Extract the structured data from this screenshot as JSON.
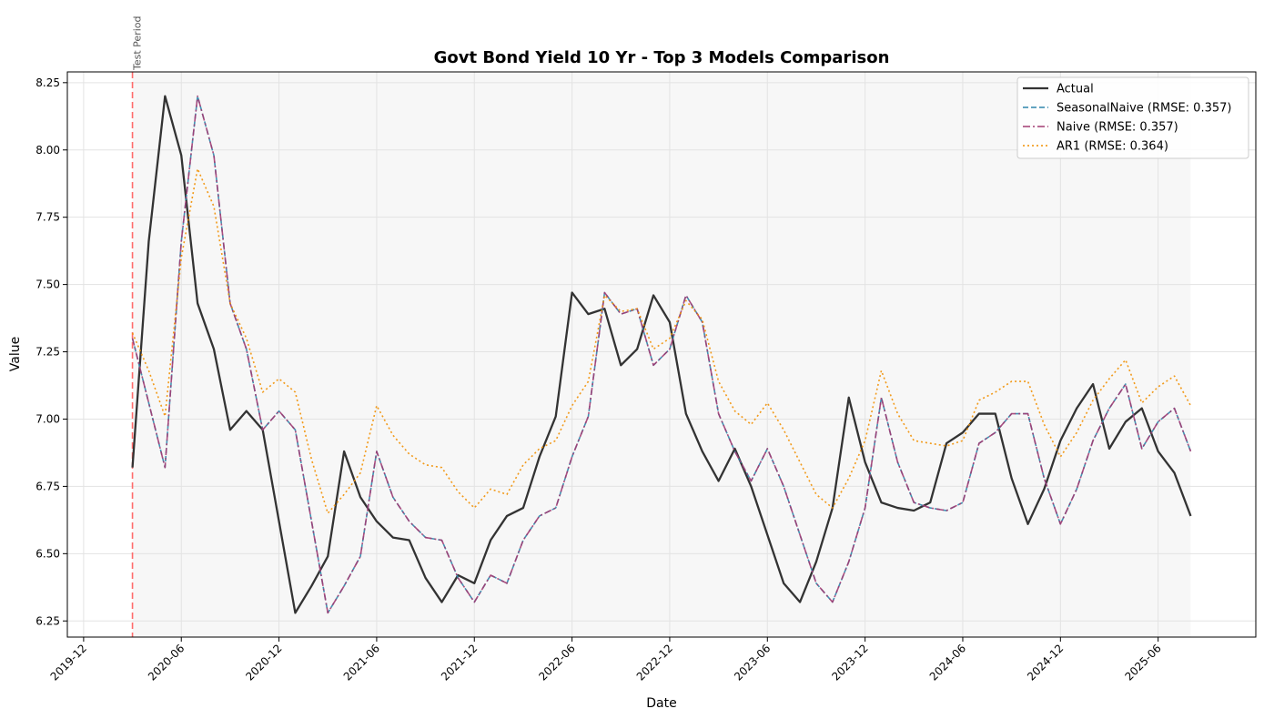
{
  "chart_data": {
    "type": "line",
    "title": "Govt Bond Yield 10 Yr - Top 3 Models Comparison",
    "xlabel": "Date",
    "ylabel": "Value",
    "ylim": [
      6.19,
      8.29
    ],
    "xlim": [
      "2019-11-01",
      "2025-12-01"
    ],
    "x_ticks": [
      "2019-12",
      "2020-06",
      "2020-12",
      "2021-06",
      "2021-12",
      "2022-06",
      "2022-12",
      "2023-06",
      "2023-12",
      "2024-06",
      "2024-12",
      "2025-06"
    ],
    "y_ticks": [
      "6.25",
      "6.50",
      "6.75",
      "7.00",
      "7.25",
      "7.50",
      "7.75",
      "8.00",
      "8.25"
    ],
    "grid": true,
    "legend_position": "top-right",
    "annotation": {
      "label": "Test Period",
      "x": "2020-03",
      "color": "#ff6b6b"
    },
    "test_period": {
      "start": "2020-03",
      "end": "2025-08"
    },
    "x": [
      "2020-03",
      "2020-04",
      "2020-05",
      "2020-06",
      "2020-07",
      "2020-08",
      "2020-09",
      "2020-10",
      "2020-11",
      "2020-12",
      "2021-01",
      "2021-02",
      "2021-03",
      "2021-04",
      "2021-05",
      "2021-06",
      "2021-07",
      "2021-08",
      "2021-09",
      "2021-10",
      "2021-11",
      "2021-12",
      "2022-01",
      "2022-02",
      "2022-03",
      "2022-04",
      "2022-05",
      "2022-06",
      "2022-07",
      "2022-08",
      "2022-09",
      "2022-10",
      "2022-11",
      "2022-12",
      "2023-01",
      "2023-02",
      "2023-03",
      "2023-04",
      "2023-05",
      "2023-06",
      "2023-07",
      "2023-08",
      "2023-09",
      "2023-10",
      "2023-11",
      "2023-12",
      "2024-01",
      "2024-02",
      "2024-03",
      "2024-04",
      "2024-05",
      "2024-06",
      "2024-07",
      "2024-08",
      "2024-09",
      "2024-10",
      "2024-11",
      "2024-12",
      "2025-01",
      "2025-02",
      "2025-03",
      "2025-04",
      "2025-05",
      "2025-06",
      "2025-07",
      "2025-08"
    ],
    "series": [
      {
        "name": "Actual",
        "color": "#333333",
        "style": "solid",
        "values": [
          6.82,
          7.66,
          8.2,
          7.98,
          7.43,
          7.26,
          6.96,
          7.03,
          6.96,
          6.62,
          6.28,
          6.38,
          6.49,
          6.88,
          6.71,
          6.62,
          6.56,
          6.55,
          6.41,
          6.32,
          6.42,
          6.39,
          6.55,
          6.64,
          6.67,
          6.86,
          7.01,
          7.47,
          7.39,
          7.41,
          7.2,
          7.26,
          7.46,
          7.36,
          7.02,
          6.88,
          6.77,
          6.89,
          6.75,
          6.57,
          6.39,
          6.32,
          6.47,
          6.67,
          7.08,
          6.84,
          6.69,
          6.67,
          6.66,
          6.69,
          6.91,
          6.95,
          7.02,
          7.02,
          6.78,
          6.61,
          6.74,
          6.92,
          7.04,
          7.13,
          6.89,
          6.99,
          7.04,
          6.88,
          6.8,
          6.64
        ]
      },
      {
        "name": "SeasonalNaive (RMSE: 0.357)",
        "color": "#2e86ab",
        "style": "dashed",
        "values": [
          7.3,
          7.06,
          6.82,
          7.66,
          8.2,
          7.98,
          7.43,
          7.26,
          6.96,
          7.03,
          6.96,
          6.62,
          6.28,
          6.38,
          6.49,
          6.88,
          6.71,
          6.62,
          6.56,
          6.55,
          6.41,
          6.32,
          6.42,
          6.39,
          6.55,
          6.64,
          6.67,
          6.86,
          7.01,
          7.47,
          7.39,
          7.41,
          7.2,
          7.26,
          7.46,
          7.36,
          7.02,
          6.88,
          6.77,
          6.89,
          6.75,
          6.57,
          6.39,
          6.32,
          6.47,
          6.67,
          7.08,
          6.84,
          6.69,
          6.67,
          6.66,
          6.69,
          6.91,
          6.95,
          7.02,
          7.02,
          6.78,
          6.61,
          6.74,
          6.92,
          7.04,
          7.13,
          6.89,
          6.99,
          7.04,
          6.88
        ]
      },
      {
        "name": "Naive (RMSE: 0.357)",
        "color": "#a23b72",
        "style": "dashdot",
        "values": [
          7.3,
          7.06,
          6.82,
          7.66,
          8.2,
          7.98,
          7.43,
          7.26,
          6.96,
          7.03,
          6.96,
          6.62,
          6.28,
          6.38,
          6.49,
          6.88,
          6.71,
          6.62,
          6.56,
          6.55,
          6.41,
          6.32,
          6.42,
          6.39,
          6.55,
          6.64,
          6.67,
          6.86,
          7.01,
          7.47,
          7.39,
          7.41,
          7.2,
          7.26,
          7.46,
          7.36,
          7.02,
          6.88,
          6.77,
          6.89,
          6.75,
          6.57,
          6.39,
          6.32,
          6.47,
          6.67,
          7.08,
          6.84,
          6.69,
          6.67,
          6.66,
          6.69,
          6.91,
          6.95,
          7.02,
          7.02,
          6.78,
          6.61,
          6.74,
          6.92,
          7.04,
          7.13,
          6.89,
          6.99,
          7.04,
          6.88
        ]
      },
      {
        "name": "AR1 (RMSE: 0.364)",
        "color": "#f18f01",
        "style": "dotted",
        "values": [
          7.32,
          7.18,
          7.01,
          7.6,
          7.93,
          7.79,
          7.43,
          7.3,
          7.1,
          7.15,
          7.1,
          6.85,
          6.65,
          6.72,
          6.8,
          7.05,
          6.94,
          6.87,
          6.83,
          6.82,
          6.73,
          6.67,
          6.74,
          6.72,
          6.83,
          6.89,
          6.92,
          7.05,
          7.14,
          7.46,
          7.4,
          7.41,
          7.26,
          7.3,
          7.44,
          7.37,
          7.14,
          7.03,
          6.98,
          7.06,
          6.96,
          6.84,
          6.72,
          6.67,
          6.78,
          6.92,
          7.18,
          7.02,
          6.92,
          6.91,
          6.9,
          6.92,
          7.07,
          7.1,
          7.14,
          7.14,
          6.98,
          6.86,
          6.95,
          7.07,
          7.15,
          7.22,
          7.06,
          7.12,
          7.16,
          7.05
        ]
      }
    ]
  }
}
